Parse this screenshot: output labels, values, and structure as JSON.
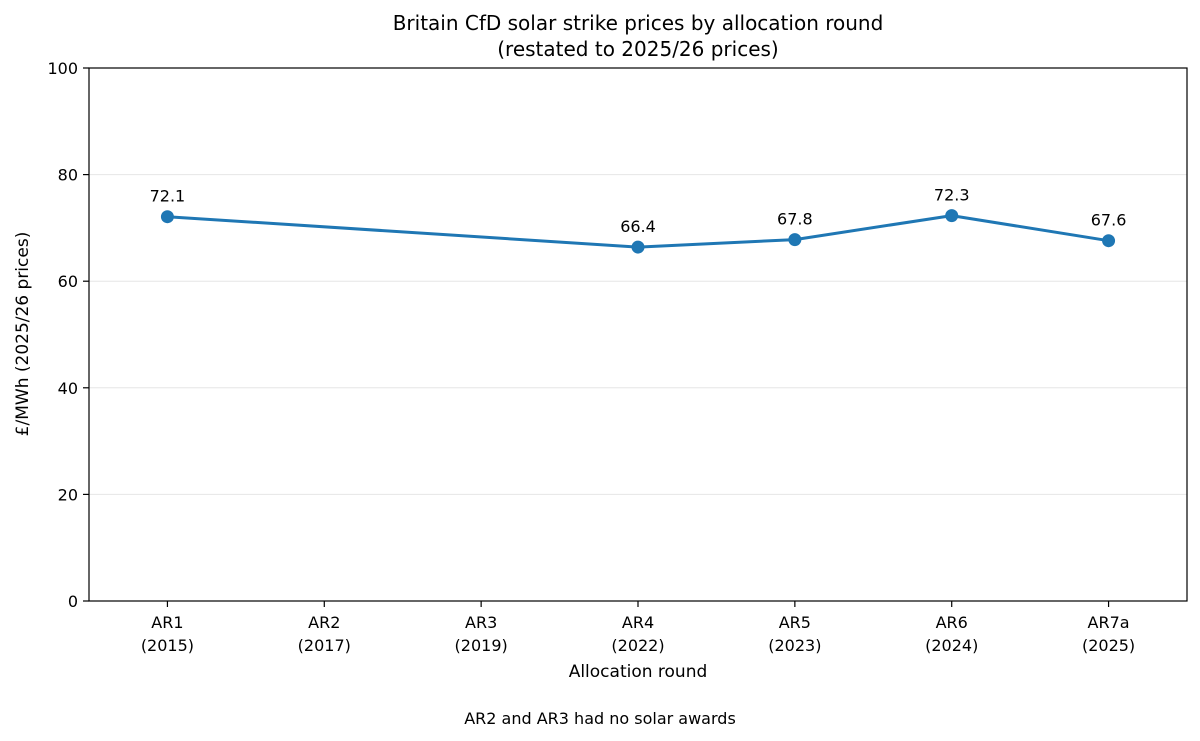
{
  "chart_data": {
    "type": "line",
    "title": "Britain CfD solar strike prices by allocation round",
    "subtitle": "(restated to 2025/26 prices)",
    "xlabel": "Allocation round",
    "ylabel": "£/MWh (2025/26 prices)",
    "categories": [
      {
        "round": "AR1",
        "year": "(2015)"
      },
      {
        "round": "AR2",
        "year": "(2017)"
      },
      {
        "round": "AR3",
        "year": "(2019)"
      },
      {
        "round": "AR4",
        "year": "(2022)"
      },
      {
        "round": "AR5",
        "year": "(2023)"
      },
      {
        "round": "AR6",
        "year": "(2024)"
      },
      {
        "round": "AR7a",
        "year": "(2025)"
      }
    ],
    "series": [
      {
        "color": "#1f77b4",
        "values": [
          72.1,
          null,
          null,
          66.4,
          67.8,
          72.3,
          67.6
        ],
        "labels": [
          "72.1",
          null,
          null,
          "66.4",
          "67.8",
          "72.3",
          "67.6"
        ]
      }
    ],
    "ylim": [
      0,
      100
    ],
    "yticks": [
      {
        "value": 0,
        "label": "0"
      },
      {
        "value": 20,
        "label": "20"
      },
      {
        "value": 40,
        "label": "40"
      },
      {
        "value": 60,
        "label": "60"
      },
      {
        "value": 80,
        "label": "80"
      },
      {
        "value": 100,
        "label": "100"
      }
    ],
    "grid": "horizontal",
    "legend": "none",
    "note": "AR2 and AR3 had no solar awards"
  }
}
